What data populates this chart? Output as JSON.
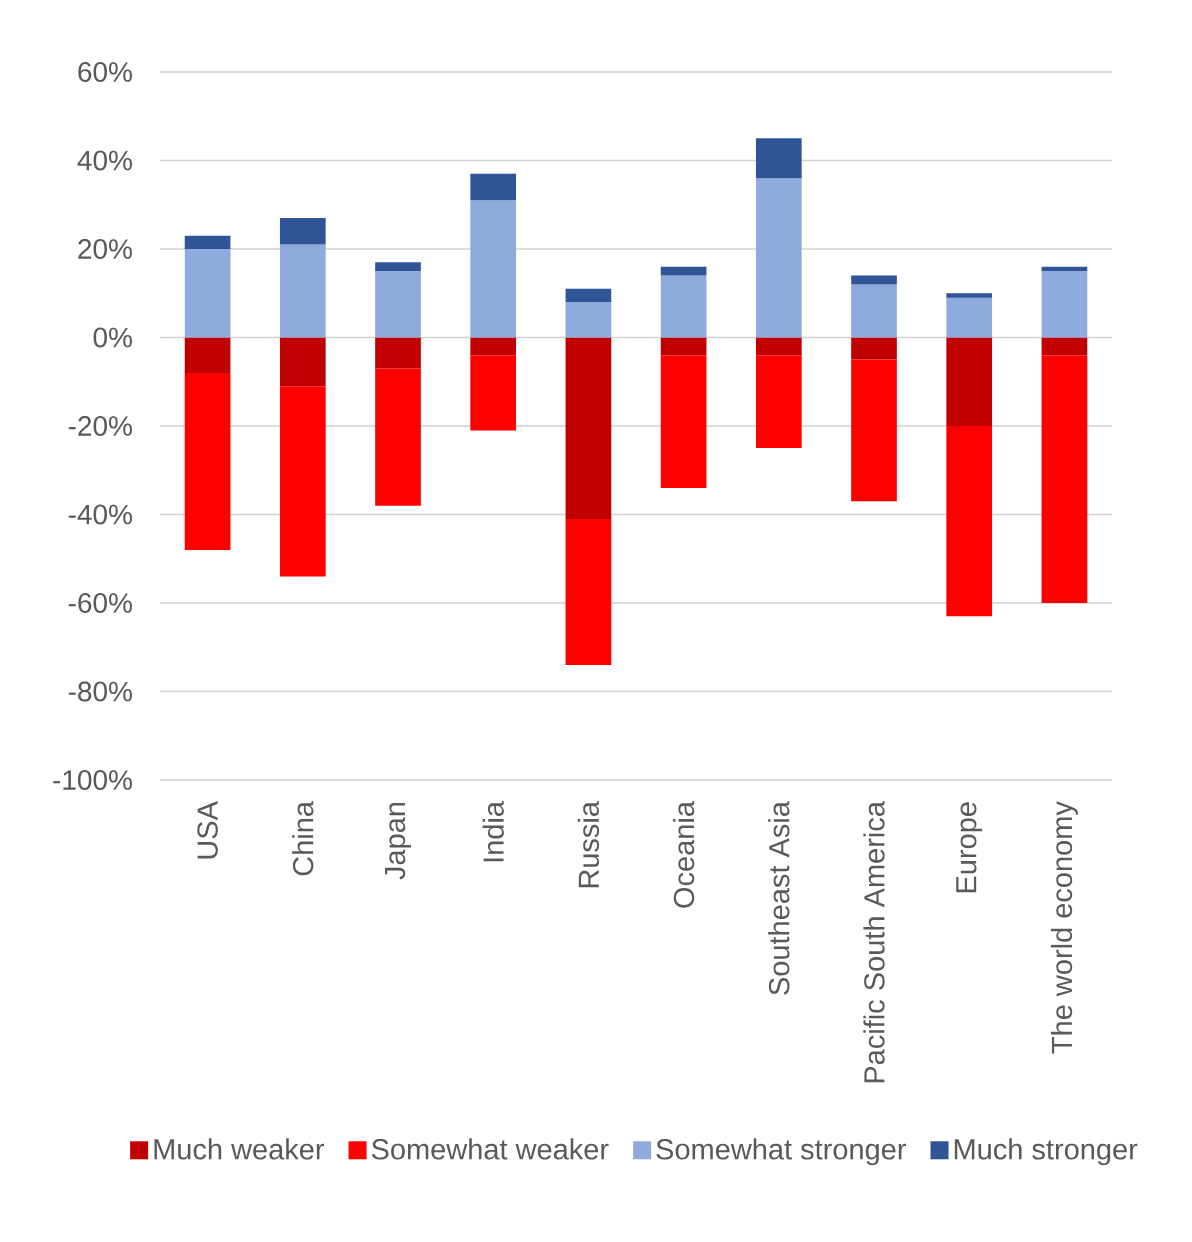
{
  "chart_data": {
    "type": "bar",
    "stacked": true,
    "categories": [
      "USA",
      "China",
      "Japan",
      "India",
      "Russia",
      "Oceania",
      "Southeast Asia",
      "Pacific South America",
      "Europe",
      "The world economy"
    ],
    "series": [
      {
        "name": "Much weaker",
        "color": "#c00000",
        "values": [
          -8,
          -11,
          -7,
          -4,
          -41,
          -4,
          -4,
          -5,
          -20,
          -4
        ]
      },
      {
        "name": "Somewhat weaker",
        "color": "#ff0000",
        "values": [
          -40,
          -43,
          -31,
          -17,
          -33,
          -30,
          -21,
          -32,
          -43,
          -56
        ]
      },
      {
        "name": "Somewhat stronger",
        "color": "#8faadc",
        "values": [
          20,
          21,
          15,
          31,
          8,
          14,
          36,
          12,
          9,
          15
        ]
      },
      {
        "name": "Much stronger",
        "color": "#2f5597",
        "values": [
          3,
          6,
          2,
          6,
          3,
          2,
          9,
          2,
          1,
          1
        ]
      }
    ],
    "ylim": [
      -100,
      60
    ],
    "yticks": [
      {
        "value": -100,
        "label": "-100%"
      },
      {
        "value": -80,
        "label": "-80%"
      },
      {
        "value": -60,
        "label": "-60%"
      },
      {
        "value": -40,
        "label": "-40%"
      },
      {
        "value": -20,
        "label": "-20%"
      },
      {
        "value": 0,
        "label": "0%"
      },
      {
        "value": 20,
        "label": "20%"
      },
      {
        "value": 40,
        "label": "40%"
      },
      {
        "value": 60,
        "label": "60%"
      }
    ],
    "grid": "y",
    "legend": "bottom"
  }
}
